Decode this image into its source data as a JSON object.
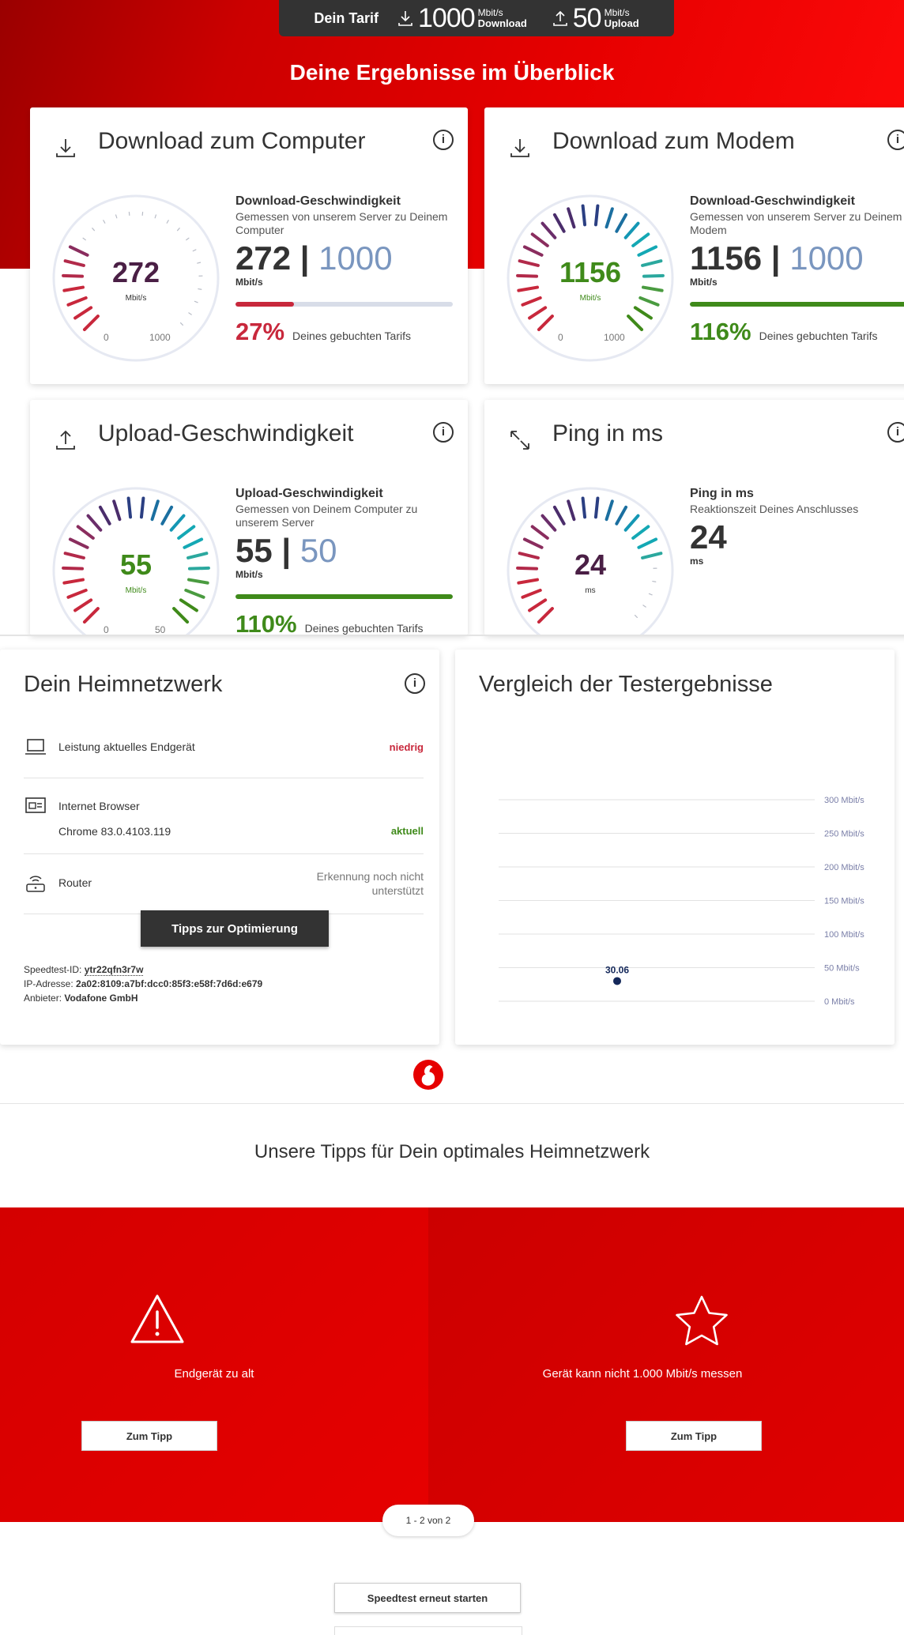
{
  "tarif": {
    "label": "Dein Tarif",
    "download_value": "1000",
    "download_unit": "Mbit/s",
    "download_caption": "Download",
    "upload_value": "50",
    "upload_unit": "Mbit/s",
    "upload_caption": "Upload"
  },
  "page_title": "Deine Ergebnisse im Überblick",
  "cards": {
    "download_computer": {
      "title": "Download zum Computer",
      "gauge_value": "272",
      "gauge_unit": "Mbit/s",
      "gauge_min": "0",
      "gauge_max": "1000",
      "gauge_fraction": 0.272,
      "metric_title": "Download-Geschwindigkeit",
      "metric_sub": "Gemessen von unserem Server zu Deinem Computer",
      "value": "272",
      "max": "1000",
      "unit": "Mbit/s",
      "percent": "27%",
      "percent_fraction": 0.27,
      "percent_text": "Deines gebuchten Tarifs",
      "color": "#c8283c",
      "value_color": "#4a1f45"
    },
    "download_modem": {
      "title": "Download zum Modem",
      "gauge_value": "1156",
      "gauge_unit": "Mbit/s",
      "gauge_min": "0",
      "gauge_max": "1000",
      "gauge_fraction": 1.0,
      "metric_title": "Download-Geschwindigkeit",
      "metric_sub": "Gemessen von unserem Server zu Deinem Modem",
      "value": "1156",
      "max": "1000",
      "unit": "Mbit/s",
      "percent": "116%",
      "percent_fraction": 1.0,
      "percent_text": "Deines gebuchten Tarifs",
      "color": "#3f8a1a",
      "value_color": "#3f8a1a"
    },
    "upload": {
      "title": "Upload-Geschwindigkeit",
      "gauge_value": "55",
      "gauge_unit": "Mbit/s",
      "gauge_min": "0",
      "gauge_max": "50",
      "gauge_fraction": 1.0,
      "metric_title": "Upload-Geschwindigkeit",
      "metric_sub": "Gemessen von Deinem Computer zu unserem Server",
      "value": "55",
      "max": "50",
      "unit": "Mbit/s",
      "percent": "110%",
      "percent_fraction": 1.0,
      "percent_text": "Deines gebuchten Tarifs",
      "color": "#3f8a1a",
      "value_color": "#3f8a1a"
    },
    "ping": {
      "title": "Ping in ms",
      "gauge_value": "24",
      "gauge_unit": "ms",
      "gauge_fraction": 0.8,
      "metric_title": "Ping in ms",
      "metric_sub": "Reaktionszeit Deines Anschlusses",
      "value": "24",
      "unit": "ms",
      "value_color": "#4a1f45"
    }
  },
  "home_network": {
    "title": "Dein Heimnetzwerk",
    "rows": [
      {
        "label": "Leistung aktuelles Endgerät",
        "value": "niedrig",
        "value_color": "#c8283c",
        "icon": "laptop-icon"
      },
      {
        "label": "Internet Browser",
        "sub": "Chrome 83.0.4103.119",
        "value": "aktuell",
        "value_color": "#3f8a1a",
        "icon": "browser-icon"
      },
      {
        "label": "Router",
        "value": "Erkennung noch nicht unterstützt",
        "value_color": "#666666",
        "icon": "router-icon"
      }
    ],
    "button": "Tipps zur Optimierung",
    "speedtest_id_label": "Speedtest-ID:",
    "speedtest_id": "ytr22qfn3r7w",
    "ip_label": "IP-Adresse:",
    "ip": "2a02:8109:a7bf:dcc0:85f3:e58f:7d6d:e679",
    "provider_label": "Anbieter:",
    "provider": "Vodafone GmbH"
  },
  "comparison": {
    "title": "Vergleich der Testergebnisse"
  },
  "chart_data": {
    "type": "scatter",
    "y_tick_labels": [
      "300 Mbit/s",
      "250 Mbit/s",
      "200 Mbit/s",
      "150 Mbit/s",
      "100 Mbit/s",
      "50 Mbit/s",
      "0 Mbit/s"
    ],
    "ylim": [
      0,
      300
    ],
    "points": [
      {
        "y": 30.06,
        "label": "30.06"
      }
    ],
    "grid": true,
    "point_color": "#14285a"
  },
  "tips": {
    "title": "Unsere Tipps für Dein optimales Heimnetzwerk",
    "items": [
      {
        "text": "Endgerät zu alt",
        "button": "Zum Tipp",
        "icon": "warning-icon"
      },
      {
        "text": "Gerät kann nicht 1.000 Mbit/s messen",
        "button": "Zum Tipp",
        "icon": "star-icon"
      }
    ],
    "pager": "1 - 2 von 2"
  },
  "restart_button": "Speedtest erneut starten"
}
